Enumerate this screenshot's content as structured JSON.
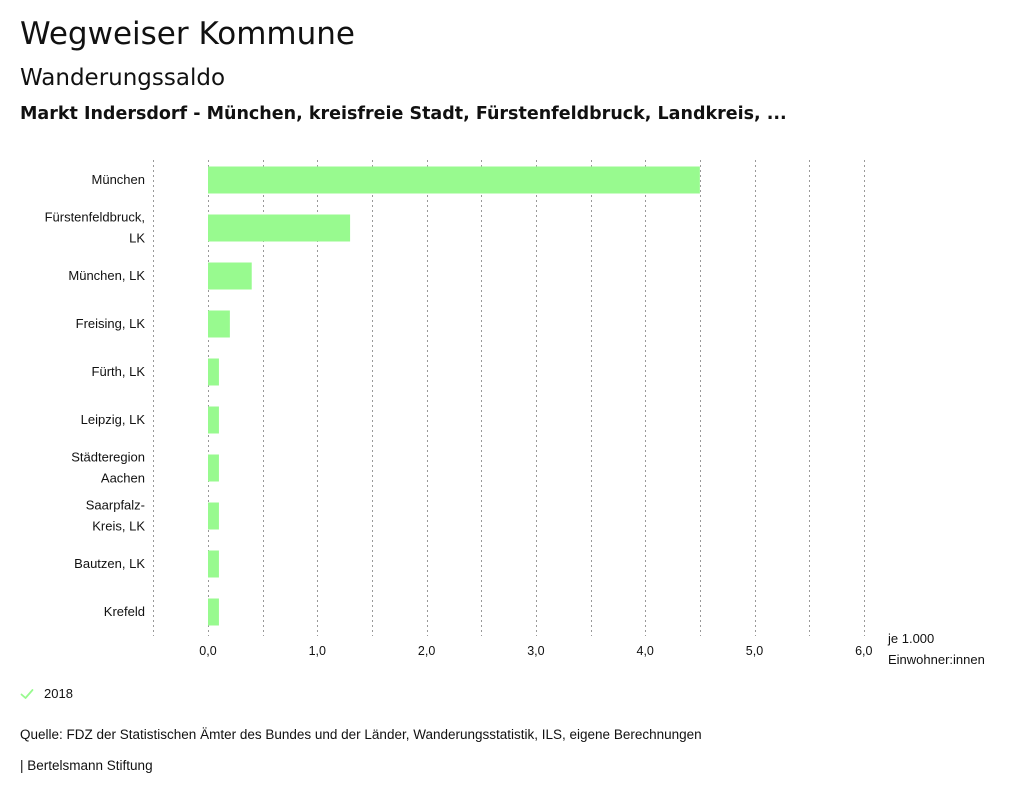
{
  "header": {
    "title": "Wegweiser Kommune",
    "subtitle": "Wanderungssaldo",
    "context": "Markt Indersdorf - München, kreisfreie Stadt, Fürstenfeldbruck, Landkreis, ..."
  },
  "legend": {
    "label": "2018",
    "check_icon": "check-icon",
    "color": "#98fa8f"
  },
  "footer": {
    "source": "Quelle: FDZ der Statistischen Ämter des Bundes und der Länder, Wanderungsstatistik, ILS, eigene Berechnungen",
    "credit": "| Bertelsmann Stiftung"
  },
  "chart_data": {
    "type": "bar",
    "orientation": "horizontal",
    "categories": [
      [
        "München"
      ],
      [
        "Fürstenfeldbruck,",
        "LK"
      ],
      [
        "München, LK"
      ],
      [
        "Freising, LK"
      ],
      [
        "Fürth, LK"
      ],
      [
        "Leipzig, LK"
      ],
      [
        "Städteregion",
        "Aachen"
      ],
      [
        "Saarpfalz-",
        "Kreis, LK"
      ],
      [
        "Bautzen, LK"
      ],
      [
        "Krefeld"
      ]
    ],
    "series": [
      {
        "name": "2018",
        "color": "#98fa8f",
        "values": [
          4.5,
          1.3,
          0.4,
          0.2,
          0.1,
          0.1,
          0.1,
          0.1,
          0.1,
          0.1
        ]
      }
    ],
    "xlim": [
      -0.5,
      6.0
    ],
    "ticks": [
      0,
      1,
      2,
      3,
      4,
      5,
      6
    ],
    "tick_labels": [
      "0,0",
      "1,0",
      "2,0",
      "3,0",
      "4,0",
      "5,0",
      "6,0"
    ],
    "minor_ticks": [
      -0.5,
      0.5,
      1.5,
      2.5,
      3.5,
      4.5,
      5.5
    ],
    "xlabel": [
      "je 1.000",
      "Einwohner:innen"
    ],
    "grid": true,
    "grid_color": "#999999"
  }
}
